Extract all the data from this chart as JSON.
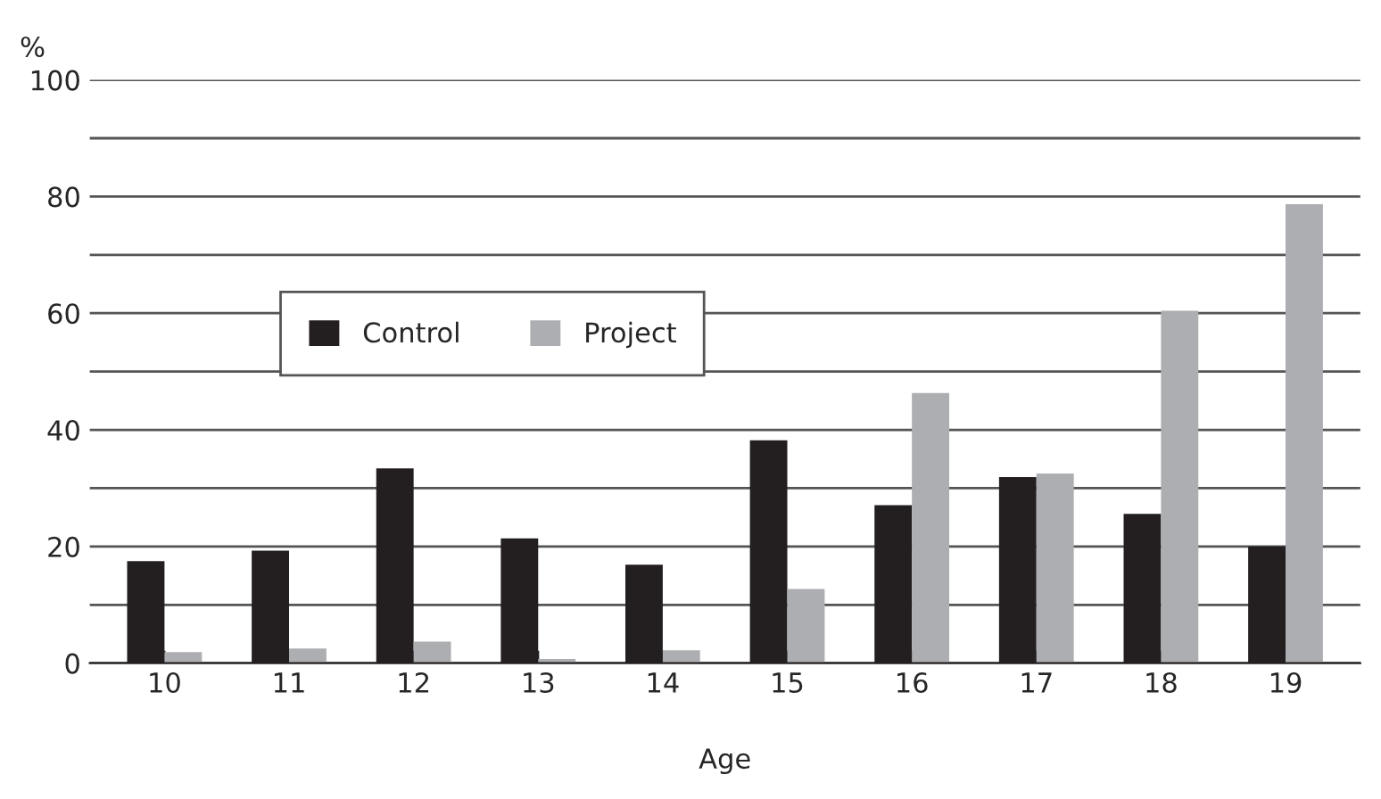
{
  "chart_data": {
    "type": "bar",
    "xlabel": "Age",
    "ylabel": "%",
    "categories": [
      "10",
      "11",
      "12",
      "13",
      "14",
      "15",
      "16",
      "17",
      "18",
      "19"
    ],
    "series": [
      {
        "name": "Control",
        "color": "#231f20",
        "values": [
          17.5,
          19.3,
          33.4,
          21.4,
          16.9,
          38.2,
          27.1,
          31.9,
          25.6,
          20.0
        ]
      },
      {
        "name": "Project",
        "color": "#adaeb1",
        "values": [
          1.9,
          2.5,
          3.7,
          0.7,
          2.2,
          12.7,
          46.3,
          32.5,
          60.4,
          78.7
        ]
      }
    ],
    "ylim": [
      0,
      100
    ],
    "yticks": [
      0,
      {
        "value": 10,
        "label": null
      },
      20,
      {
        "value": 30,
        "label": null
      },
      40,
      {
        "value": 50,
        "label": null
      },
      60,
      {
        "value": 70,
        "label": null
      },
      80,
      {
        "value": 90,
        "label": null
      },
      100
    ],
    "grid": "y",
    "legend": "center left"
  }
}
